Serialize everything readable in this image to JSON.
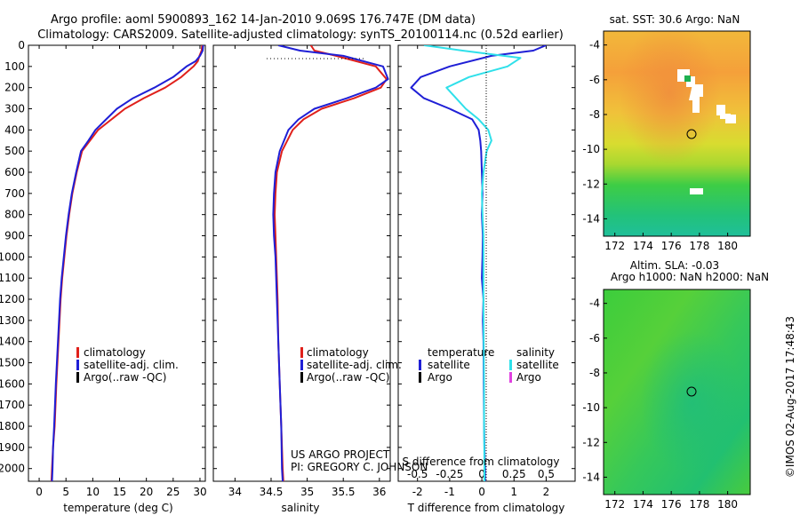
{
  "header": {
    "title_line1": "Argo profile: aoml 5900893_162 14-Jan-2010 9.069S 176.747E (DM data)",
    "title_line2": "Climatology: CARS2009. Satellite-adjusted climatology: synTS_20100114.nc (0.52d earlier)"
  },
  "colors": {
    "climatology": "#e0201b",
    "satellite": "#1f1fd6",
    "argo": "#000000",
    "sal_satellite": "#2fe0ea",
    "sal_argo": "#e040e0"
  },
  "credits": {
    "project": "US ARGO PROJECT",
    "pi": "PI: GREGORY C. JOHNSON",
    "side_label": "©IMOS 02-Aug-2017 17:48:43"
  },
  "chart_data": [
    {
      "type": "line",
      "panel": "temperature",
      "xlabel": "temperature (deg C)",
      "ylabel": "",
      "xlim": [
        -2,
        31
      ],
      "ylim": [
        2060,
        0
      ],
      "y_reversed": true,
      "xticks": [
        0,
        5,
        10,
        15,
        20,
        25,
        30
      ],
      "yticks": [
        0,
        100,
        200,
        300,
        400,
        500,
        600,
        700,
        800,
        900,
        1000,
        1100,
        1200,
        1300,
        1400,
        1500,
        1600,
        1700,
        1800,
        1900,
        2000
      ],
      "legend": [
        "climatology",
        "satellite-adj. clim.",
        "Argo(..raw -QC)"
      ],
      "legend_position": "lower-center",
      "series": [
        {
          "name": "climatology",
          "color_key": "climatology",
          "x": [
            30.4,
            30.3,
            29.9,
            29.6,
            28.8,
            26.5,
            23.5,
            19.5,
            16.0,
            13.5,
            11.0,
            9.5,
            8.0,
            7.0,
            6.2,
            5.6,
            5.1,
            4.7,
            4.3,
            4.0,
            3.6,
            3.2,
            2.9,
            2.6,
            2.4,
            2.3
          ],
          "depth": [
            0,
            25,
            50,
            75,
            100,
            150,
            200,
            250,
            300,
            350,
            400,
            450,
            500,
            600,
            700,
            800,
            900,
            1000,
            1100,
            1200,
            1400,
            1600,
            1800,
            1900,
            2000,
            2060
          ]
        },
        {
          "name": "satellite-adj. clim.",
          "color_key": "satellite",
          "x": [
            30.6,
            30.5,
            30.0,
            29.2,
            27.5,
            25.0,
            21.5,
            17.5,
            14.5,
            12.5,
            10.5,
            9.2,
            7.8,
            6.9,
            6.1,
            5.5,
            5.0,
            4.6,
            4.2,
            3.9,
            3.5,
            3.1,
            2.8,
            2.6,
            2.5,
            2.4
          ],
          "depth": [
            0,
            25,
            50,
            75,
            100,
            150,
            200,
            250,
            300,
            350,
            400,
            450,
            500,
            600,
            700,
            800,
            900,
            1000,
            1100,
            1200,
            1400,
            1600,
            1800,
            1900,
            2000,
            2060
          ]
        }
      ]
    },
    {
      "type": "line",
      "panel": "salinity",
      "xlabel": "salinity",
      "ylabel": "",
      "xlim": [
        33.7,
        36.15
      ],
      "ylim": [
        2060,
        0
      ],
      "y_reversed": true,
      "xticks": [
        34,
        34.5,
        35,
        35.5,
        36
      ],
      "legend": [
        "climatology",
        "satellite-adj. clim.",
        "Argo(..raw -QC)"
      ],
      "legend_position": "lower-center",
      "series": [
        {
          "name": "climatology",
          "color_key": "climatology",
          "x": [
            35.05,
            35.1,
            35.4,
            35.95,
            36.1,
            36.02,
            35.65,
            35.2,
            34.95,
            34.8,
            34.65,
            34.58,
            34.56,
            34.55,
            34.56,
            34.57,
            34.59,
            34.6,
            34.62,
            34.64,
            34.66,
            34.67
          ],
          "depth": [
            0,
            25,
            50,
            100,
            160,
            200,
            250,
            300,
            350,
            400,
            500,
            600,
            700,
            800,
            900,
            1000,
            1200,
            1400,
            1600,
            1800,
            2000,
            2060
          ]
        },
        {
          "name": "satellite-adj. clim.",
          "color_key": "satellite",
          "x": [
            34.6,
            34.9,
            35.5,
            36.05,
            36.12,
            35.95,
            35.55,
            35.1,
            34.88,
            34.74,
            34.62,
            34.56,
            34.54,
            34.53,
            34.54,
            34.56,
            34.58,
            34.6,
            34.62,
            34.64,
            34.65,
            34.66
          ],
          "depth": [
            0,
            25,
            50,
            100,
            160,
            200,
            250,
            300,
            350,
            400,
            500,
            600,
            700,
            800,
            900,
            1000,
            1200,
            1400,
            1600,
            1800,
            2000,
            2060
          ]
        }
      ]
    },
    {
      "type": "line",
      "panel": "difference",
      "xlabel": "T difference from climatology",
      "xlabel_top": "S difference from climatology",
      "xlim": [
        -2.6,
        2.9
      ],
      "ylim": [
        2060,
        0
      ],
      "y_reversed": true,
      "xticks": [
        -2,
        -1,
        0,
        1,
        2
      ],
      "sticks_labels": [
        "-0.5",
        "-0.25",
        "0",
        "0.25",
        "0.5"
      ],
      "sticks_values": [
        -2,
        -1,
        0,
        1,
        2
      ],
      "legend_temperature": {
        "heading": "temperature",
        "items": [
          "satellite",
          "Argo"
        ]
      },
      "legend_salinity": {
        "heading": "salinity",
        "items": [
          "satellite",
          "Argo"
        ]
      },
      "series": [
        {
          "name": "T satellite diff",
          "color_key": "satellite",
          "x": [
            2.0,
            1.6,
            0.3,
            -1.0,
            -1.9,
            -2.2,
            -1.8,
            -1.0,
            -0.3,
            -0.1,
            -0.05,
            -0.02,
            0.0,
            0.02,
            0.0,
            0.03,
            0.02,
            0.0,
            0.05,
            0.03,
            0.05,
            0.06,
            0.07,
            0.08,
            0.1,
            0.1
          ],
          "depth": [
            0,
            25,
            50,
            100,
            150,
            200,
            250,
            300,
            350,
            400,
            450,
            500,
            600,
            700,
            800,
            900,
            1000,
            1100,
            1200,
            1300,
            1400,
            1600,
            1800,
            1900,
            2000,
            2060
          ]
        },
        {
          "name": "S satellite diff",
          "color_key": "sal_satellite",
          "x": [
            -1.8,
            -0.6,
            1.2,
            0.8,
            -0.4,
            -1.1,
            -0.8,
            -0.5,
            -0.1,
            0.2,
            0.3,
            0.15,
            0.05,
            0.0,
            0.02,
            0.05,
            0.05,
            0.05,
            0.06,
            0.07,
            0.07,
            0.08,
            0.08
          ],
          "depth": [
            0,
            25,
            60,
            100,
            150,
            200,
            250,
            300,
            350,
            400,
            450,
            500,
            600,
            700,
            800,
            900,
            1000,
            1200,
            1400,
            1600,
            1800,
            2000,
            2060
          ]
        }
      ]
    },
    {
      "type": "heatmap",
      "panel": "sst_map",
      "title": "sat. SST: 30.6 Argo: NaN",
      "xticks": [
        172,
        174,
        176,
        178,
        180
      ],
      "yticks": [
        -4,
        -6,
        -8,
        -10,
        -12,
        -14
      ],
      "xlim": [
        171.2,
        181.6
      ],
      "ylim": [
        -15.0,
        -3.2
      ],
      "profile_location": {
        "lon": 176.75,
        "lat": -9.07
      }
    },
    {
      "type": "heatmap",
      "panel": "sla_map",
      "title_line1": "Altim. SLA: -0.03",
      "title_line2": "Argo h1000: NaN h2000: NaN",
      "xticks": [
        172,
        174,
        176,
        178,
        180
      ],
      "yticks": [
        -4,
        -6,
        -8,
        -10,
        -12,
        -14
      ],
      "xlim": [
        171.2,
        181.6
      ],
      "ylim": [
        -15.0,
        -3.2
      ],
      "profile_location": {
        "lon": 176.75,
        "lat": -9.07
      }
    }
  ]
}
